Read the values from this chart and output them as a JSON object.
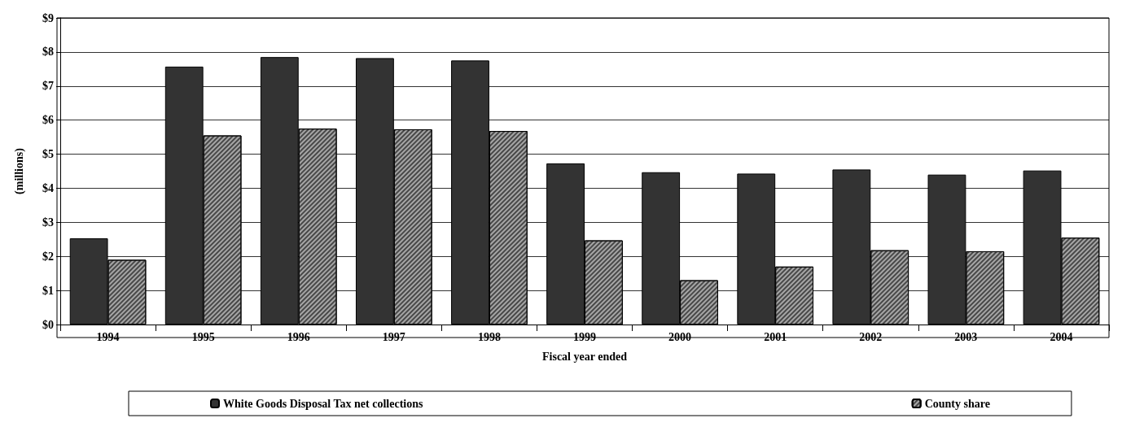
{
  "chart_data": {
    "type": "bar",
    "xlabel": "Fiscal year ended",
    "ylabel": "(millions)",
    "categories": [
      "1994",
      "1995",
      "1996",
      "1997",
      "1998",
      "1999",
      "2000",
      "2001",
      "2002",
      "2003",
      "2004"
    ],
    "series": [
      {
        "name": "White Goods Disposal Tax net collections",
        "color": "#333333",
        "values": [
          2.53,
          7.57,
          7.85,
          7.82,
          7.75,
          4.73,
          4.47,
          4.43,
          4.55,
          4.4,
          4.52
        ]
      },
      {
        "name": "County share",
        "color": "#a6a6a6",
        "values": [
          1.9,
          5.55,
          5.75,
          5.73,
          5.68,
          2.47,
          1.3,
          1.7,
          2.18,
          2.15,
          2.55
        ]
      }
    ],
    "ylim": [
      0,
      9
    ],
    "yticks": [
      {
        "value": 0,
        "label": "$0"
      },
      {
        "value": 1,
        "label": "$1"
      },
      {
        "value": 2,
        "label": "$2"
      },
      {
        "value": 3,
        "label": "$3"
      },
      {
        "value": 4,
        "label": "$4"
      },
      {
        "value": 5,
        "label": "$5"
      },
      {
        "value": 6,
        "label": "$6"
      },
      {
        "value": 7,
        "label": "$7"
      },
      {
        "value": 8,
        "label": "$8"
      },
      {
        "value": 9,
        "label": "$9"
      }
    ],
    "grid": "y",
    "legend": "bottom"
  }
}
